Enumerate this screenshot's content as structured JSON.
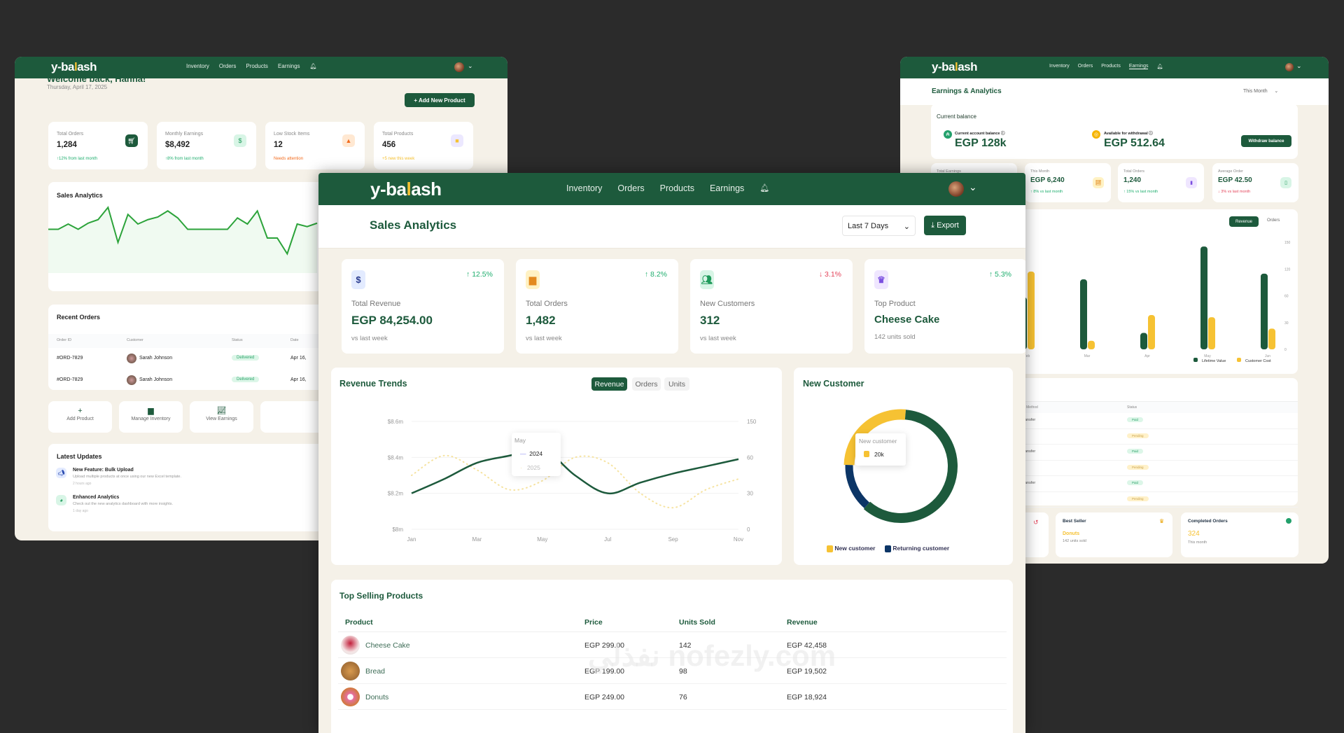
{
  "brand": {
    "logo": "y-balash",
    "green": "#1d5a3c",
    "yellow": "#f6c233",
    "navy": "#0c3566",
    "cream": "#f5f1e8"
  },
  "nav": [
    "Inventory",
    "Orders",
    "Products",
    "Earnings"
  ],
  "watermark": "نفذلي nofezly.com",
  "left": {
    "welcome": "Welcome back, Hanna!",
    "date": "Thursday, April 17, 2025",
    "add_button": "+ Add New Product",
    "stats": [
      {
        "label": "Total Orders",
        "value": "1,284",
        "note": "↑12% from last month",
        "icon": "cart-icon"
      },
      {
        "label": "Monthly Earnings",
        "value": "$8,492",
        "note": "↑8% from last month",
        "icon": "dollar-icon"
      },
      {
        "label": "Low Stock Items",
        "value": "12",
        "note": "Needs attention",
        "icon": "warning-icon"
      },
      {
        "label": "Total Products",
        "value": "456",
        "note": "+5 new this week",
        "icon": "box-icon"
      }
    ],
    "sales_title": "Sales Analytics",
    "sparkline": [
      50,
      50,
      56,
      50,
      57,
      61,
      75,
      35,
      67,
      56,
      61,
      64,
      71,
      63,
      50,
      50,
      50,
      50,
      50,
      63,
      56,
      71,
      40,
      40,
      22,
      56,
      53,
      57
    ],
    "recent_title": "Recent Orders",
    "recent_cols": [
      "Order ID",
      "Customer",
      "Status",
      "Date"
    ],
    "recent_rows": [
      [
        "#ORD-7829",
        "Sarah Johnson",
        "Delivered",
        "Apr 16,"
      ],
      [
        "#ORD-7829",
        "Sarah Johnson",
        "Delivered",
        "Apr 16,"
      ]
    ],
    "actions": [
      "Add Product",
      "Manage Inventory",
      "View Earnings"
    ],
    "updates_title": "Latest Updates",
    "updates": [
      {
        "title": "New Feature: Bulk Upload",
        "desc": "Upload multiple products at once using our new Excel template.",
        "time": "2 hours ago"
      },
      {
        "title": "Enhanced Analytics",
        "desc": "Check out the new analytics dashboard with more insights.",
        "time": "1 day ago"
      }
    ]
  },
  "right": {
    "title": "Earnings & Analytics",
    "period": "This Month",
    "balance_title": "Current balance",
    "current_label": "Current account balance",
    "current_value": "EGP 128k",
    "available_label": "Available for withdrawal",
    "available_value": "EGP 512.64",
    "withdraw": "Withdraw balance",
    "stats": [
      {
        "label": "Total Earnings",
        "value": "",
        "note": ""
      },
      {
        "label": "This Month",
        "value": "EGP 6,240",
        "note": "↑ 8% vs last month",
        "dir": "up"
      },
      {
        "label": "Total Orders",
        "value": "1,240",
        "note": "↑ 15% vs last month",
        "dir": "up"
      },
      {
        "label": "Average Order",
        "value": "EGP 42.50",
        "note": "↓ 3% vs last month",
        "dir": "down"
      }
    ],
    "tabs": [
      "Revenue",
      "Orders"
    ],
    "payments_cols": [
      "Amount",
      "Payment Method",
      "Status"
    ],
    "payments": [
      [
        "EGP 1,200",
        "Bank Transfer",
        "Paid"
      ],
      [
        "EGP 850",
        "PayPal",
        "Pending"
      ],
      [
        "EGP 1,200",
        "Bank Transfer",
        "Paid"
      ],
      [
        "EGP 850",
        "PayPal",
        "Pending"
      ],
      [
        "EGP 1,200",
        "Bank Transfer",
        "Paid"
      ],
      [
        "EGP 850",
        "PayPal",
        "Pending"
      ]
    ],
    "best_seller": {
      "title": "Best Seller",
      "value": "Donuts",
      "note": "142 units sold"
    },
    "completed": {
      "title": "Completed Orders",
      "value": "324",
      "note": "This month"
    }
  },
  "main": {
    "title": "Sales Analytics",
    "range": "Last 7 Days",
    "export": "Export",
    "stats": [
      {
        "label": "Total Revenue",
        "value": "EGP 84,254.00",
        "note": "vs last week",
        "change": "12.5%",
        "dir": "up",
        "icon": "dollar-icon"
      },
      {
        "label": "Total Orders",
        "value": "1,482",
        "note": "vs last week",
        "change": "8.2%",
        "dir": "up",
        "icon": "box-icon"
      },
      {
        "label": "New Customers",
        "value": "312",
        "note": "vs last week",
        "change": "3.1%",
        "dir": "down",
        "icon": "users-icon"
      },
      {
        "label": "Top Product",
        "value": "Cheese Cake",
        "note": "142 units sold",
        "change": "5.3%",
        "dir": "up",
        "icon": "crown-icon"
      }
    ],
    "trends_title": "Revenue Trends",
    "trends_tabs": [
      "Revenue",
      "Orders",
      "Units"
    ],
    "customer_title": "New Customer",
    "top_title": "Top Selling Products",
    "top_cols": [
      "Product",
      "Price",
      "Units Sold",
      "Revenue"
    ],
    "top_rows": [
      [
        "Cheese Cake",
        "EGP 299.00",
        "142",
        "EGP 42,458"
      ],
      [
        "Bread",
        "EGP 199.00",
        "98",
        "EGP 19,502"
      ],
      [
        "Donuts",
        "EGP 249.00",
        "76",
        "EGP 18,924"
      ]
    ]
  },
  "chart_data": [
    {
      "type": "line",
      "title": "Revenue Trends",
      "x": [
        "Jan",
        "Feb",
        "Mar",
        "Apr",
        "May",
        "Jun",
        "Jul",
        "Aug",
        "Sep",
        "Oct",
        "Nov"
      ],
      "x_ticks": [
        "Jan",
        "Mar",
        "May",
        "Jul",
        "Sep",
        "Nov"
      ],
      "y_ticks": [
        "$8m",
        "$8.2m",
        "$8.4m",
        "$8.6m"
      ],
      "y2_ticks": [
        "0",
        "30",
        "60",
        "150"
      ],
      "ylim": [
        8.0,
        8.6
      ],
      "series": [
        {
          "name": "2024",
          "values": [
            8.2,
            8.28,
            8.37,
            8.41,
            8.45,
            8.3,
            8.2,
            8.26,
            8.31,
            8.35,
            8.39
          ],
          "style": "solid"
        },
        {
          "name": "2025",
          "values": [
            8.3,
            8.41,
            8.33,
            8.22,
            8.27,
            8.4,
            8.37,
            8.2,
            8.12,
            8.22,
            8.28
          ],
          "style": "dotted"
        }
      ],
      "tooltip": {
        "label": "May",
        "items": [
          "2024",
          "2025"
        ]
      },
      "grid": true
    },
    {
      "type": "pie",
      "title": "New Customer",
      "segments": [
        {
          "name": "New customer",
          "value": 26,
          "color": "#f6c233"
        },
        {
          "name": "Returning customer",
          "value": 14,
          "color": "#0c3566"
        },
        {
          "value": 60,
          "color": "#1d5a3c"
        }
      ],
      "tooltip": {
        "label": "New customer",
        "value": "20k"
      },
      "legend": "bottom"
    },
    {
      "type": "bar",
      "categories": [
        "Feb",
        "Mar",
        "Apr",
        "May",
        "Jun"
      ],
      "y_ticks": [
        "0",
        "30",
        "60",
        "120",
        "150"
      ],
      "ylim": [
        0,
        150
      ],
      "series": [
        {
          "name": "Lifetime Value",
          "values": [
            73,
            98,
            23,
            144,
            106
          ],
          "color": "#1d5a3c"
        },
        {
          "name": "Customer Cost",
          "values": [
            109,
            12,
            48,
            45,
            29
          ],
          "color": "#f6c233"
        }
      ],
      "legend": "bottom-right"
    }
  ]
}
